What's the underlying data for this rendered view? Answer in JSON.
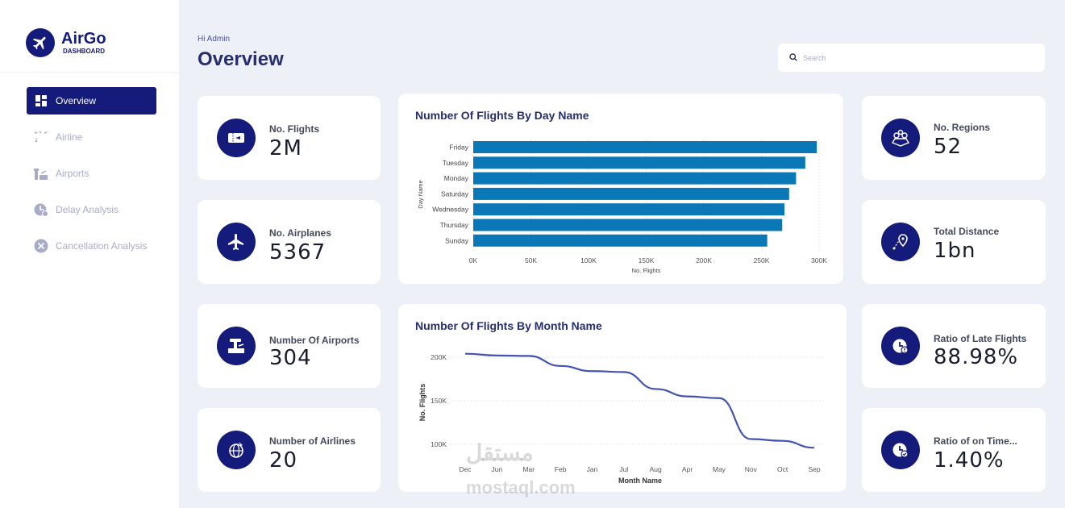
{
  "brand": {
    "name": "AirGo",
    "subtitle": "DASHBOARD"
  },
  "sidebar": {
    "items": [
      {
        "label": "Overview",
        "icon": "dashboard-grid-icon",
        "active": true
      },
      {
        "label": "Airline",
        "icon": "plane-path-icon",
        "active": false
      },
      {
        "label": "Airports",
        "icon": "airport-icon",
        "active": false
      },
      {
        "label": "Delay Analysis",
        "icon": "delay-clock-icon",
        "active": false
      },
      {
        "label": "Cancellation Analysis",
        "icon": "cancel-icon",
        "active": false
      }
    ]
  },
  "header": {
    "greeting": "Hi Admin",
    "title": "Overview"
  },
  "search": {
    "placeholder": "Search",
    "value": ""
  },
  "kpis": {
    "flights": {
      "label": "No. Flights",
      "value": "2M",
      "icon": "ticket-icon"
    },
    "airplanes": {
      "label": "No. Airplanes",
      "value": "5367",
      "icon": "airplane-icon"
    },
    "airports": {
      "label": "Number Of Airports",
      "value": "304",
      "icon": "control-tower-icon"
    },
    "airlines": {
      "label": "Number of Airlines",
      "value": "20",
      "icon": "globe-plane-icon"
    },
    "regions": {
      "label": "No. Regions",
      "value": "52",
      "icon": "map-pins-icon"
    },
    "distance": {
      "label": "Total Distance",
      "value": "1bn",
      "icon": "route-pin-icon"
    },
    "late_ratio": {
      "label": "Ratio of Late Flights",
      "value": "88.98%",
      "icon": "late-clock-icon"
    },
    "ontime_ratio": {
      "label": "Ratio of on Time...",
      "value": "1.40%",
      "icon": "ontime-clock-icon"
    }
  },
  "colors": {
    "accent": "#141b7a",
    "bar": "#0a77b6",
    "line": "#4353b0",
    "background": "#eef0f7"
  },
  "watermark": {
    "line1": "مستقل",
    "line2": "mostaql.com"
  },
  "chart_data": [
    {
      "type": "bar",
      "orientation": "horizontal",
      "title": "Number Of Flights By Day Name",
      "xlabel": "No. Flights",
      "ylabel": "Day Name",
      "categories": [
        "Friday",
        "Tuesday",
        "Monday",
        "Saturday",
        "Wednesday",
        "Thursday",
        "Sunday"
      ],
      "values": [
        298000,
        288000,
        280000,
        274000,
        270000,
        268000,
        255000
      ],
      "xlim": [
        0,
        300000
      ],
      "xticks": [
        0,
        50000,
        100000,
        150000,
        200000,
        250000,
        300000
      ],
      "xtick_labels": [
        "0K",
        "50K",
        "100K",
        "150K",
        "200K",
        "250K",
        "300K"
      ],
      "grid": true
    },
    {
      "type": "line",
      "title": "Number Of Flights By Month Name",
      "xlabel": "Month Name",
      "ylabel": "No. Flights",
      "categories": [
        "Dec",
        "Jun",
        "Mar",
        "Feb",
        "Jan",
        "Jul",
        "Aug",
        "Apr",
        "May",
        "Nov",
        "Oct",
        "Sep"
      ],
      "values": [
        204000,
        202000,
        201500,
        190000,
        184000,
        183000,
        163500,
        155000,
        153000,
        106000,
        104000,
        96000
      ],
      "yticks": [
        100000,
        150000,
        200000
      ],
      "ytick_labels": [
        "100K",
        "150K",
        "200K"
      ],
      "grid": true
    }
  ]
}
